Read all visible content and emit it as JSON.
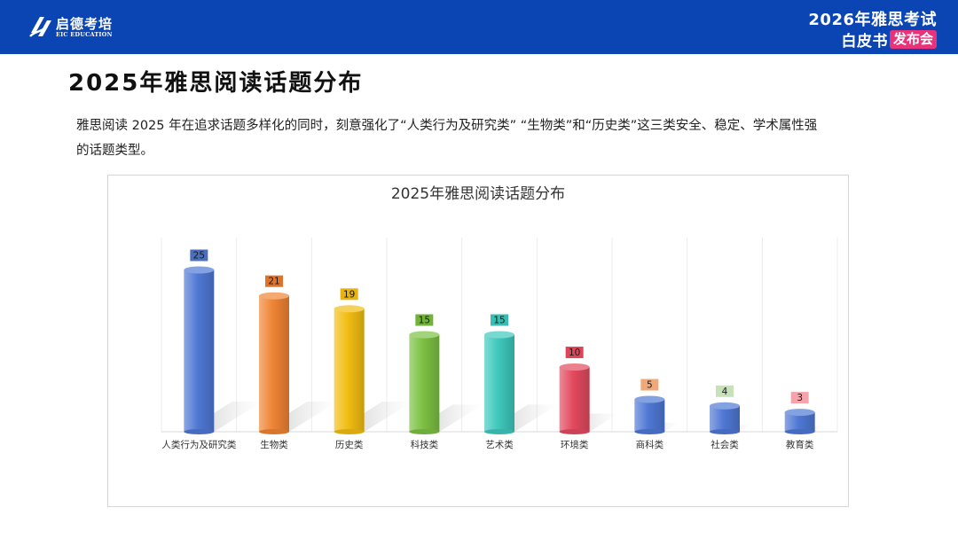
{
  "header": {
    "logo_name": "启德考培",
    "logo_sub": "EIC EDUCATION",
    "event_line1": "2026年雅思考试",
    "event_line2": "白皮书",
    "event_badge": "发布会",
    "brand_color": "#0b45b4",
    "badge_color": "#e8337b"
  },
  "page": {
    "title": "2025年雅思阅读话题分布",
    "intro": "雅思阅读 2025 年在追求话题多样化的同时，刻意强化了“人类行为及研究类” “生物类”和“历史类”这三类安全、稳定、学术属性强的话题类型。"
  },
  "chart_data": {
    "type": "bar",
    "title": "2025年雅思阅读话题分布",
    "categories": [
      "人类行为及研究类",
      "生物类",
      "历史类",
      "科技类",
      "艺术类",
      "环境类",
      "商科类",
      "社会类",
      "教育类"
    ],
    "values": [
      25,
      21,
      19,
      15,
      15,
      10,
      5,
      4,
      3
    ],
    "colors": [
      "#4f78d4",
      "#ef8434",
      "#f2bd12",
      "#7cc043",
      "#3ec8bd",
      "#e3495f",
      "#4f78d4",
      "#4f78d4",
      "#4f78d4"
    ],
    "label_colors": [
      "#4a6fbf",
      "#e0732a",
      "#e9b20c",
      "#70b23a",
      "#38bdb3",
      "#de4658",
      "#f0a878",
      "#c7e2b8",
      "#f5a3ad"
    ],
    "xlabel": "",
    "ylabel": "",
    "ylim": [
      0,
      30
    ],
    "grid": "vertical",
    "legend": "none"
  }
}
